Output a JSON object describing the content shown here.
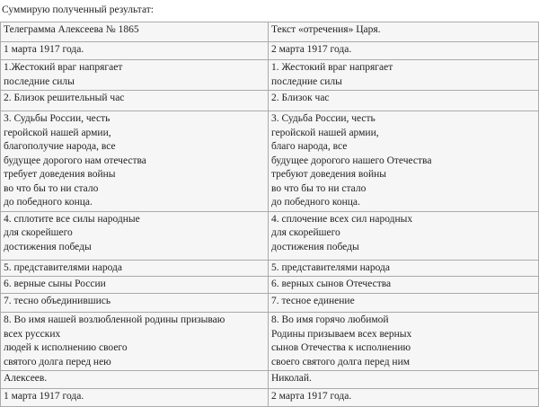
{
  "intro": "Суммирую полученный результат:",
  "table": {
    "header": [
      "Телеграмма Алексеева № 1865",
      "Текст «отречения» Царя."
    ],
    "rows": [
      [
        [
          "1 марта 1917 года."
        ],
        [
          "2 марта 1917 года."
        ]
      ],
      [
        [
          "1.Жестокий враг напрягает",
          "последние силы"
        ],
        [
          "1. Жестокий враг напрягает",
          "последние силы"
        ]
      ],
      [
        [
          "2. Близок решительный час"
        ],
        [
          "2. Близок час"
        ]
      ],
      [
        [
          "3. Судьбы России, честь",
          "геройской нашей армии,",
          "благополучие народа, все",
          "будущее дорогого нам отечества",
          "требует доведения войны",
          "во что бы то ни стало",
          "до победного конца."
        ],
        [
          "3. Судьба России, честь",
          "геройской нашей армии,",
          "благо народа, все",
          "будущее дорогого нашего Отечества",
          "требуют доведения войны",
          "во что бы то ни стало",
          "до победного конца."
        ]
      ],
      [
        [
          "4. сплотите все силы народные",
          "для скорейшего",
          "достижения победы"
        ],
        [
          "4. сплочение всех сил народных",
          "для скорейшего",
          "достижения победы"
        ]
      ],
      [
        [
          "5. представителями народа"
        ],
        [
          "5. представителями народа"
        ]
      ],
      [
        [
          "6. верные сыны России"
        ],
        [
          "6. верных сынов Отечества"
        ]
      ],
      [
        [
          "7. тесно объединившись"
        ],
        [
          "7.  тесное единение"
        ]
      ],
      [
        [
          "8. Во имя нашей возлюбленной родины призываю",
          "всех русских",
          "людей к исполнению своего",
          "святого долга перед нею"
        ],
        [
          "8. Во имя горячо любимой",
          "Родины призываем всех верных",
          "сынов Отечества к исполнению",
          "своего святого долга перед ним"
        ]
      ],
      [
        [
          "Алексеев."
        ],
        [
          "Николай."
        ]
      ],
      [
        [
          "1 марта 1917 года."
        ],
        [
          "2 марта 1917 года."
        ]
      ]
    ]
  }
}
